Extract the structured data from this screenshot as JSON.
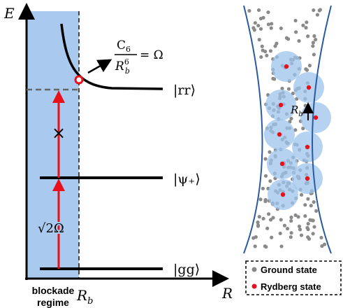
{
  "left": {
    "energy_axis_label": "E",
    "distance_axis_label": "R",
    "levels": [
      "|rr⟩",
      "|ψ₊⟩",
      "|gg⟩"
    ],
    "annotation": {
      "numerator": {
        "base": "C",
        "sub": "6"
      },
      "denominator": {
        "base": "R",
        "sub": "b",
        "sup": "6"
      },
      "rhs": "= Ω"
    },
    "blocked_mark": "×",
    "rabi_label": "√2Ω",
    "region_label": [
      "blockade",
      "regime"
    ],
    "radius_label": {
      "base": "R",
      "sub": "b"
    }
  },
  "right": {
    "radius_label": {
      "base": "R",
      "sub": "b"
    },
    "legend": [
      "Ground state",
      "Rydberg state"
    ]
  }
}
